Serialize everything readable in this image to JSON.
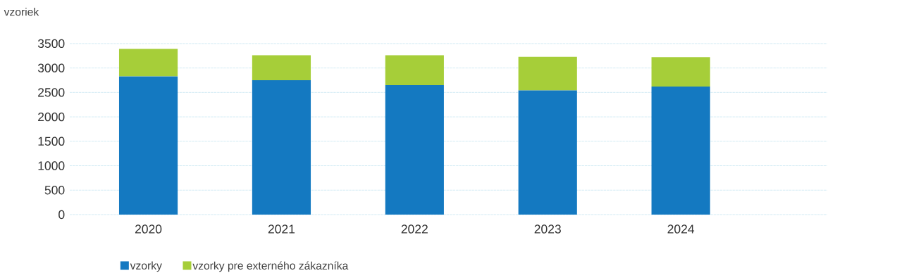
{
  "chart_data": {
    "type": "bar",
    "stacked": true,
    "ylabel": "vzoriek",
    "categories": [
      "2020",
      "2021",
      "2022",
      "2023",
      "2024"
    ],
    "series": [
      {
        "name": "vzorky",
        "color": "#1479c1",
        "values": [
          2830,
          2750,
          2650,
          2540,
          2620
        ]
      },
      {
        "name": "vzorky pre externého zákazníka",
        "color": "#a6ce39",
        "values": [
          560,
          510,
          610,
          690,
          600
        ]
      }
    ],
    "ylim": [
      0,
      3500
    ],
    "yticks": [
      0,
      500,
      1000,
      1500,
      2000,
      2500,
      3000,
      3500
    ],
    "grid": "y",
    "legend": "bottom"
  }
}
